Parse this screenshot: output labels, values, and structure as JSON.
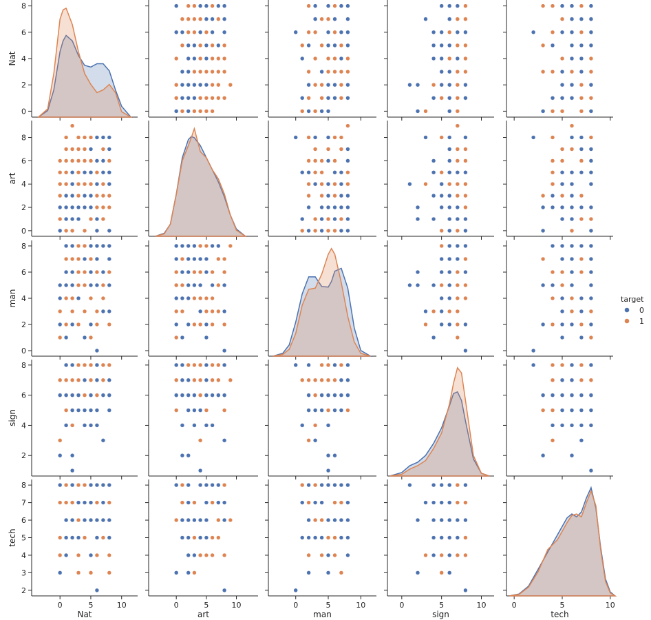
{
  "chart_data": {
    "type": "scatter",
    "variables": [
      "Nat",
      "art",
      "man",
      "sign",
      "tech"
    ],
    "ranges": {
      "Nat": [
        -4.6,
        12.6
      ],
      "art": [
        -4.6,
        13.6
      ],
      "man": [
        -4.2,
        12.4
      ],
      "sign": [
        -1.8,
        11.6
      ],
      "tech": [
        -0.8,
        10.3
      ]
    },
    "y_ranges": {
      "Nat": [
        -0.45,
        8.45
      ],
      "art": [
        -0.48,
        9.45
      ],
      "man": [
        -0.42,
        8.42
      ],
      "sign": [
        0.64,
        8.36
      ],
      "tech": [
        1.68,
        8.32
      ]
    },
    "ticks": {
      "Nat": [
        0,
        5,
        10
      ],
      "art": [
        0,
        5,
        10
      ],
      "man": [
        0,
        5,
        10
      ],
      "sign": [
        0,
        5,
        10
      ],
      "tech": [
        0,
        5,
        10
      ]
    },
    "y_ticks": {
      "Nat": [
        0,
        2,
        4,
        6,
        8
      ],
      "art": [
        0,
        2,
        4,
        6,
        8
      ],
      "man": [
        0,
        2,
        4,
        6,
        8
      ],
      "sign": [
        2,
        4,
        6,
        8
      ],
      "tech": [
        2,
        3,
        4,
        5,
        6,
        7,
        8
      ]
    },
    "xlabels": [
      "Nat",
      "art",
      "man",
      "sign",
      "tech"
    ],
    "ylabels": [
      "Nat",
      "art",
      "man",
      "sign",
      "tech"
    ],
    "legend": {
      "title": "target",
      "placement": "right",
      "entries": [
        {
          "label": "0",
          "color": "#4c72b0"
        },
        {
          "label": "1",
          "color": "#dd8452"
        }
      ]
    },
    "series": [
      {
        "color": "#4c72b0",
        "points": [
          [
            0,
            0,
            2,
            6,
            3
          ],
          [
            0,
            0,
            4,
            6,
            8
          ],
          [
            1,
            1,
            6,
            8,
            6
          ],
          [
            1,
            2,
            8,
            6,
            4
          ],
          [
            2,
            2,
            2,
            5,
            5
          ],
          [
            2,
            3,
            8,
            6,
            6
          ],
          [
            2,
            4,
            5,
            1,
            8
          ],
          [
            3,
            1,
            4,
            6,
            5
          ],
          [
            4,
            2,
            7,
            7,
            6
          ],
          [
            4,
            5,
            1,
            4,
            7
          ],
          [
            5,
            2,
            6,
            5,
            8
          ],
          [
            5,
            7,
            8,
            6,
            7
          ],
          [
            6,
            4,
            7,
            5,
            6
          ],
          [
            6,
            6,
            5,
            4,
            8
          ],
          [
            6,
            1,
            8,
            7,
            5
          ],
          [
            7,
            6,
            8,
            6,
            8
          ],
          [
            7,
            8,
            3,
            3,
            7
          ],
          [
            8,
            5,
            7,
            7,
            5
          ],
          [
            8,
            7,
            8,
            6,
            8
          ],
          [
            8,
            8,
            5,
            6,
            6
          ],
          [
            0,
            2,
            5,
            2,
            3
          ],
          [
            1,
            1,
            1,
            4,
            5
          ],
          [
            2,
            1,
            6,
            2,
            6
          ],
          [
            3,
            2,
            4,
            5,
            7
          ],
          [
            4,
            3,
            7,
            5,
            6
          ],
          [
            5,
            3,
            5,
            4,
            4
          ],
          [
            6,
            0,
            8,
            8,
            8
          ],
          [
            7,
            5,
            6,
            6,
            6
          ],
          [
            8,
            4,
            3,
            5,
            5
          ],
          [
            8,
            0,
            7,
            6,
            8
          ],
          [
            2,
            5,
            2,
            8,
            8
          ],
          [
            5,
            5,
            2,
            6,
            6
          ],
          [
            6,
            8,
            0,
            8,
            2
          ],
          [
            1,
            3,
            5,
            4,
            6
          ]
        ]
      },
      {
        "color": "#dd8452",
        "points": [
          [
            0,
            0,
            1,
            7,
            8
          ],
          [
            0,
            1,
            3,
            6,
            5
          ],
          [
            0,
            3,
            2,
            6,
            7
          ],
          [
            1,
            2,
            4,
            8,
            6
          ],
          [
            1,
            4,
            6,
            5,
            5
          ],
          [
            1,
            5,
            7,
            7,
            6
          ],
          [
            1,
            8,
            2,
            5,
            4
          ],
          [
            2,
            0,
            5,
            8,
            8
          ],
          [
            2,
            3,
            6,
            6,
            7
          ],
          [
            2,
            6,
            3,
            4,
            8
          ],
          [
            2,
            9,
            8,
            7,
            6
          ],
          [
            3,
            1,
            7,
            7,
            8
          ],
          [
            3,
            2,
            2,
            5,
            3
          ],
          [
            3,
            4,
            5,
            8,
            5
          ],
          [
            3,
            6,
            4,
            7,
            7
          ],
          [
            3,
            8,
            6,
            6,
            4
          ],
          [
            4,
            0,
            6,
            8,
            6
          ],
          [
            4,
            2,
            5,
            7,
            5
          ],
          [
            4,
            5,
            3,
            5,
            6
          ],
          [
            4,
            7,
            8,
            6,
            8
          ],
          [
            5,
            1,
            4,
            8,
            7
          ],
          [
            5,
            3,
            7,
            6,
            3
          ],
          [
            5,
            5,
            1,
            4,
            8
          ],
          [
            5,
            6,
            6,
            7,
            4
          ],
          [
            5,
            8,
            5,
            8,
            8
          ],
          [
            6,
            0,
            3,
            7,
            6
          ],
          [
            6,
            2,
            7,
            8,
            7
          ],
          [
            6,
            4,
            8,
            7,
            4
          ],
          [
            6,
            6,
            2,
            8,
            8
          ],
          [
            7,
            1,
            5,
            6,
            6
          ],
          [
            7,
            3,
            6,
            7,
            5
          ],
          [
            7,
            5,
            8,
            8,
            8
          ],
          [
            7,
            7,
            3,
            7,
            6
          ],
          [
            8,
            0,
            5,
            5,
            3
          ],
          [
            8,
            2,
            7,
            7,
            8
          ],
          [
            8,
            3,
            8,
            8,
            7
          ],
          [
            8,
            8,
            6,
            8,
            4
          ],
          [
            0,
            5,
            4,
            6,
            4
          ],
          [
            0,
            6,
            3,
            7,
            8
          ],
          [
            1,
            0,
            5,
            6,
            6
          ],
          [
            1,
            6,
            8,
            8,
            7
          ],
          [
            2,
            4,
            4,
            5,
            6
          ],
          [
            2,
            7,
            7,
            8,
            5
          ],
          [
            3,
            5,
            6,
            8,
            8
          ],
          [
            3,
            7,
            8,
            6,
            6
          ],
          [
            4,
            4,
            3,
            6,
            8
          ],
          [
            4,
            8,
            7,
            8,
            6
          ],
          [
            5,
            2,
            5,
            7,
            4
          ],
          [
            6,
            5,
            6,
            6,
            6
          ],
          [
            7,
            4,
            6,
            8,
            8
          ],
          [
            8,
            6,
            5,
            7,
            5
          ],
          [
            0,
            4,
            2,
            3,
            4
          ],
          [
            1,
            7,
            5,
            7,
            8
          ],
          [
            2,
            2,
            8,
            5,
            6
          ],
          [
            3,
            3,
            4,
            7,
            5
          ],
          [
            4,
            6,
            6,
            8,
            7
          ],
          [
            5,
            4,
            8,
            6,
            8
          ],
          [
            6,
            3,
            7,
            7,
            6
          ],
          [
            7,
            2,
            4,
            8,
            8
          ],
          [
            8,
            5,
            2,
            7,
            6
          ]
        ]
      }
    ],
    "kde": {
      "Nat": {
        "x": [
          -3.5,
          -2,
          -1,
          0,
          0.5,
          1,
          2,
          3,
          4,
          5,
          6,
          7,
          8,
          9,
          10,
          11.5
        ],
        "series": [
          [
            0.0,
            0.012,
            0.05,
            0.12,
            0.14,
            0.15,
            0.14,
            0.113,
            0.095,
            0.092,
            0.098,
            0.098,
            0.085,
            0.05,
            0.02,
            0.0
          ],
          [
            0.0,
            0.015,
            0.08,
            0.18,
            0.197,
            0.2,
            0.17,
            0.12,
            0.08,
            0.06,
            0.045,
            0.05,
            0.06,
            0.045,
            0.01,
            0.0
          ]
        ]
      },
      "art": {
        "x": [
          -3.5,
          -2,
          -1,
          0,
          1,
          2,
          2.5,
          3,
          4,
          5,
          6,
          7,
          8,
          9,
          10,
          11.5
        ],
        "series": [
          [
            0.0,
            0.005,
            0.02,
            0.07,
            0.13,
            0.16,
            0.165,
            0.163,
            0.15,
            0.13,
            0.11,
            0.09,
            0.065,
            0.035,
            0.012,
            0.0
          ],
          [
            0.0,
            0.004,
            0.02,
            0.07,
            0.125,
            0.15,
            0.163,
            0.178,
            0.14,
            0.13,
            0.11,
            0.095,
            0.07,
            0.035,
            0.01,
            0.0
          ]
        ]
      },
      "man": {
        "x": [
          -3.5,
          -2,
          -1,
          0,
          1,
          2,
          3,
          4,
          5,
          5.5,
          6,
          7,
          8,
          9,
          10,
          11.5
        ],
        "series": [
          [
            0.0,
            0.005,
            0.02,
            0.06,
            0.11,
            0.14,
            0.14,
            0.123,
            0.122,
            0.132,
            0.15,
            0.155,
            0.12,
            0.05,
            0.01,
            0.0
          ],
          [
            0.0,
            0.003,
            0.012,
            0.04,
            0.09,
            0.118,
            0.12,
            0.145,
            0.18,
            0.19,
            0.18,
            0.13,
            0.07,
            0.025,
            0.005,
            0.0
          ]
        ]
      },
      "sign": {
        "x": [
          -1.5,
          0,
          1,
          2,
          3,
          4,
          5,
          6,
          6.5,
          7,
          7.5,
          8,
          9,
          10,
          11
        ],
        "series": [
          [
            0.0,
            0.01,
            0.03,
            0.04,
            0.06,
            0.095,
            0.14,
            0.205,
            0.24,
            0.245,
            0.22,
            0.16,
            0.05,
            0.008,
            0.0
          ],
          [
            0.0,
            0.005,
            0.02,
            0.03,
            0.045,
            0.08,
            0.125,
            0.21,
            0.27,
            0.315,
            0.3,
            0.22,
            0.06,
            0.008,
            0.0
          ]
        ]
      },
      "tech": {
        "x": [
          -0.5,
          0.5,
          1.5,
          2.5,
          3.5,
          4.5,
          5.5,
          6,
          6.5,
          7,
          7.5,
          8,
          8.5,
          9,
          9.5,
          10,
          10.5
        ],
        "series": [
          [
            0.0,
            0.004,
            0.02,
            0.055,
            0.09,
            0.125,
            0.16,
            0.168,
            0.162,
            0.172,
            0.2,
            0.222,
            0.18,
            0.1,
            0.035,
            0.008,
            0.0
          ],
          [
            0.0,
            0.003,
            0.018,
            0.05,
            0.095,
            0.115,
            0.15,
            0.165,
            0.168,
            0.162,
            0.19,
            0.215,
            0.185,
            0.095,
            0.03,
            0.006,
            0.0
          ]
        ]
      }
    }
  }
}
